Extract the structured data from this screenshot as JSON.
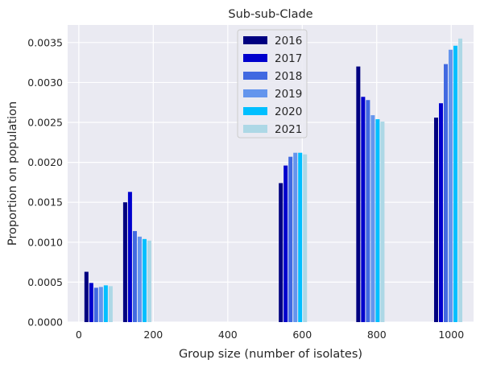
{
  "chart_data": {
    "type": "bar",
    "title": "Sub-sub-Clade",
    "xlabel": "Group size (number of isolates)",
    "ylabel": "Proportion on population",
    "xlim": [
      -30,
      1060
    ],
    "ylim": [
      0,
      0.00372
    ],
    "xticks": [
      0,
      200,
      400,
      600,
      800,
      1000
    ],
    "xtick_labels": [
      "0",
      "200",
      "400",
      "600",
      "800",
      "1000"
    ],
    "yticks": [
      0,
      0.0005,
      0.001,
      0.0015,
      0.002,
      0.0025,
      0.003,
      0.0035
    ],
    "ytick_labels": [
      "0.0000",
      "0.0005",
      "0.0010",
      "0.0015",
      "0.0020",
      "0.0025",
      "0.0030",
      "0.0035"
    ],
    "grid": true,
    "background": "#eaeaf2",
    "legend_position": "top-center",
    "groups": [
      {
        "x_start": 15,
        "bar_width": 13
      },
      {
        "x_start": 119,
        "bar_width": 13
      },
      {
        "x_start": 537,
        "bar_width": 13
      },
      {
        "x_start": 745,
        "bar_width": 13
      },
      {
        "x_start": 954,
        "bar_width": 13
      }
    ],
    "series": [
      {
        "name": "2016",
        "color": "#000080",
        "values": [
          0.00063,
          0.0015,
          0.00174,
          0.0032,
          0.00256
        ]
      },
      {
        "name": "2017",
        "color": "#0000cd",
        "values": [
          0.00049,
          0.00163,
          0.00196,
          0.00282,
          0.00274
        ]
      },
      {
        "name": "2018",
        "color": "#4169e1",
        "values": [
          0.00043,
          0.00114,
          0.00207,
          0.00278,
          0.00323
        ]
      },
      {
        "name": "2019",
        "color": "#6495ed",
        "values": [
          0.00044,
          0.00107,
          0.00212,
          0.00259,
          0.00341
        ]
      },
      {
        "name": "2020",
        "color": "#00bfff",
        "values": [
          0.00046,
          0.00104,
          0.00212,
          0.00254,
          0.00346
        ]
      },
      {
        "name": "2021",
        "color": "#add8e6",
        "values": [
          0.00045,
          0.00102,
          0.0021,
          0.00251,
          0.00355
        ]
      }
    ]
  }
}
